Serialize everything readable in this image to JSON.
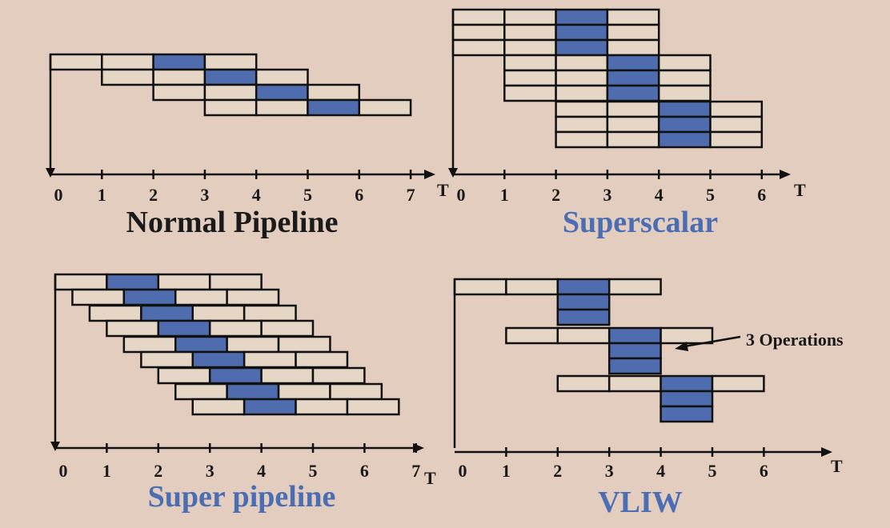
{
  "colors": {
    "background": "#e3cdbf",
    "cell_fill": "#e6d6c6",
    "active_fill": "#4f6cae",
    "line": "#111111",
    "title_dark": "#1a1a1a",
    "title_blue": "#4a6db4"
  },
  "time_axis_label": "T",
  "panels": [
    {
      "id": "normal-pipeline",
      "title": "Normal Pipeline",
      "title_color": "title_dark",
      "ticks": [
        "0",
        "1",
        "2",
        "3",
        "4",
        "5",
        "6",
        "7"
      ],
      "instructions": [
        {
          "start": 0,
          "active": 2
        },
        {
          "start": 1,
          "active": 3
        },
        {
          "start": 2,
          "active": 4
        },
        {
          "start": 3,
          "active": 5
        }
      ]
    },
    {
      "id": "superscalar",
      "title": "Superscalar",
      "title_color": "title_blue",
      "ticks": [
        "0",
        "1",
        "2",
        "3",
        "4",
        "5",
        "6"
      ],
      "instructions": [
        {
          "start": 0,
          "active": 2
        },
        {
          "start": 0,
          "active": 2
        },
        {
          "start": 0,
          "active": 2
        },
        {
          "start": 1,
          "active": 3
        },
        {
          "start": 1,
          "active": 3
        },
        {
          "start": 1,
          "active": 3
        },
        {
          "start": 2,
          "active": 4
        },
        {
          "start": 2,
          "active": 4
        },
        {
          "start": 2,
          "active": 4
        }
      ]
    },
    {
      "id": "super-pipeline",
      "title": "Super pipeline",
      "title_color": "title_blue",
      "ticks": [
        "0",
        "1",
        "2",
        "3",
        "4",
        "5",
        "6",
        "7"
      ],
      "instructions": [
        {
          "start": 0,
          "active": 1
        },
        {
          "start": 0.333,
          "active": 1.333
        },
        {
          "start": 0.667,
          "active": 1.667
        },
        {
          "start": 1,
          "active": 2
        },
        {
          "start": 1.333,
          "active": 2.333
        },
        {
          "start": 1.667,
          "active": 2.667
        },
        {
          "start": 2,
          "active": 3
        },
        {
          "start": 2.333,
          "active": 3.333
        },
        {
          "start": 2.667,
          "active": 3.667
        }
      ]
    },
    {
      "id": "vliw",
      "title": "VLIW",
      "title_color": "title_blue",
      "annotation": "3 Operations",
      "ticks": [
        "0",
        "1",
        "2",
        "3",
        "4",
        "5",
        "6"
      ],
      "instructions": [
        {
          "start": 0,
          "active": 2,
          "operations": 3
        },
        {
          "start": 1,
          "active": 3,
          "operations": 3
        },
        {
          "start": 2,
          "active": 4,
          "operations": 3
        }
      ]
    }
  ]
}
